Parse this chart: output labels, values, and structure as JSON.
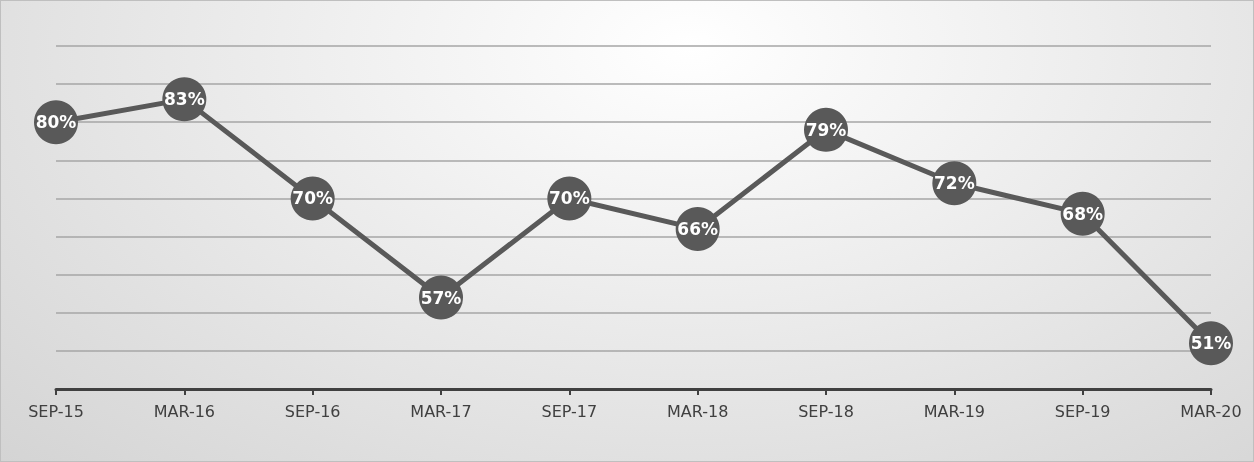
{
  "chart_data": {
    "type": "line",
    "categories": [
      "SEP-15",
      "MAR-16",
      "SEP-16",
      "MAR-17",
      "SEP-17",
      "MAR-18",
      "SEP-18",
      "MAR-19",
      "SEP-19",
      "MAR-20"
    ],
    "series": [
      {
        "color": "#595959",
        "values": [
          80,
          83,
          70,
          57,
          70,
          66,
          79,
          72,
          68,
          51
        ],
        "value_labels": [
          "80%",
          "83%",
          "70%",
          "57%",
          "70%",
          "66%",
          "79%",
          "72%",
          "68%",
          "51%"
        ]
      }
    ],
    "ylim": [
      45,
      90
    ],
    "yticks": [
      {
        "value": 50,
        "label": null
      },
      {
        "value": 55,
        "label": null
      },
      {
        "value": 60,
        "label": null
      },
      {
        "value": 65,
        "label": null
      },
      {
        "value": 70,
        "label": null
      },
      {
        "value": 75,
        "label": null
      },
      {
        "value": 80,
        "label": null
      },
      {
        "value": 85,
        "label": null
      },
      {
        "value": 90,
        "label": null
      }
    ],
    "grid": "y",
    "marker": "circle",
    "line_style": "solid",
    "tick_labels": "x"
  }
}
